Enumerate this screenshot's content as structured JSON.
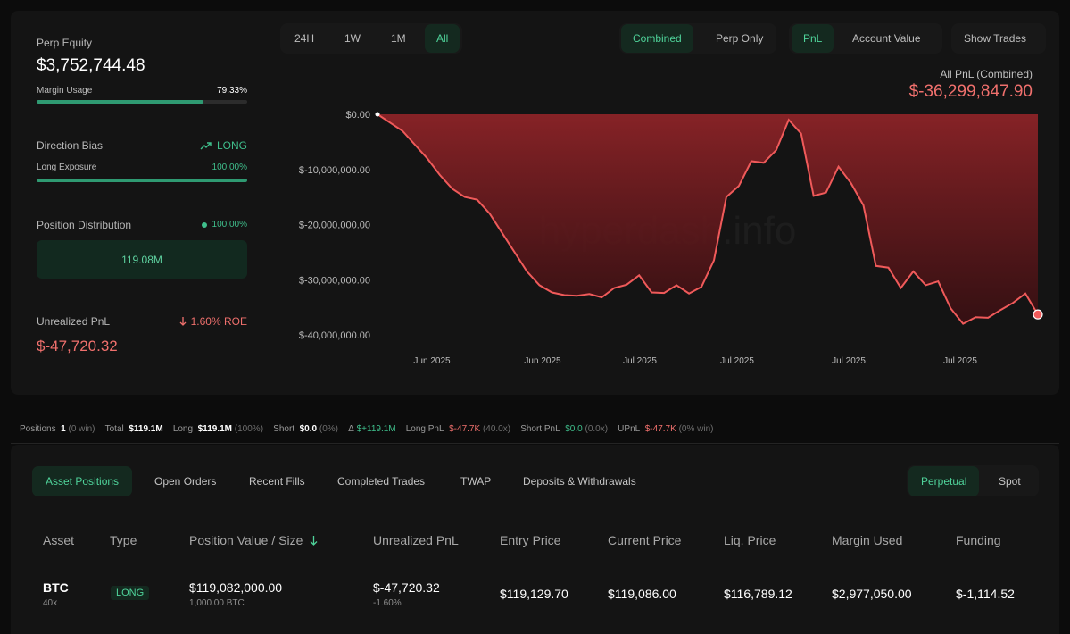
{
  "summary": {
    "perp_equity_label": "Perp Equity",
    "perp_equity_value": "$3,752,744.48",
    "margin_usage_label": "Margin Usage",
    "margin_usage_value": "79.33%",
    "margin_usage_fraction": 0.7933,
    "direction_bias_label": "Direction Bias",
    "direction_bias_value": "LONG",
    "long_exposure_label": "Long Exposure",
    "long_exposure_value": "100.00%",
    "long_exposure_fraction": 1.0,
    "position_distribution_label": "Position Distribution",
    "position_distribution_value": "100.00%",
    "position_distribution_total": "119.08M",
    "unrealized_pnl_label": "Unrealized PnL",
    "unrealized_pnl_roe": "1.60% ROE",
    "unrealized_pnl_value": "$-47,720.32"
  },
  "timeframes": [
    "24H",
    "1W",
    "1M",
    "All"
  ],
  "active_timeframe": "All",
  "view_modes": [
    "Combined",
    "Perp Only"
  ],
  "active_view_mode": "Combined",
  "metrics": [
    "PnL",
    "Account Value"
  ],
  "active_metric": "PnL",
  "show_trades_label": "Show Trades",
  "pnl_header": {
    "label": "All PnL (Combined)",
    "value": "$-36,299,847.90"
  },
  "watermark": "hyperdash.info",
  "colors": {
    "accent_green": "#3fbf8c",
    "loss_red": "#f0706d",
    "line_red": "#f05a5a",
    "area_fill": "#7d1f23"
  },
  "chart_data": {
    "type": "area",
    "series": [
      {
        "values": [
          0,
          -1500000,
          -3000000,
          -5500000,
          -8000000,
          -11000000,
          -13500000,
          -15000000,
          -15500000,
          -18000000,
          -21500000,
          -25000000,
          -28500000,
          -31000000,
          -32300000,
          -32800000,
          -32900000,
          -32600000,
          -33200000,
          -31500000,
          -30900000,
          -29200000,
          -32300000,
          -32400000,
          -31000000,
          -32500000,
          -31300000,
          -26500000,
          -15000000,
          -13000000,
          -8500000,
          -8800000,
          -6500000,
          -1000000,
          -3500000,
          -14800000,
          -14200000,
          -9500000,
          -12500000,
          -16500000,
          -27500000,
          -27800000,
          -31500000,
          -28500000,
          -31000000,
          -30300000,
          -35200000,
          -38000000,
          -36800000,
          -36900000,
          -35500000,
          -34200000,
          -32500000,
          -36300000
        ]
      }
    ],
    "y_tick_labels": [
      "$0.00",
      "$-10,000,000.00",
      "$-20,000,000.00",
      "$-30,000,000.00",
      "$-40,000,000.00"
    ],
    "y_ticks": [
      0,
      -10000000,
      -20000000,
      -30000000,
      -40000000
    ],
    "ylim": [
      -40000000,
      0
    ],
    "x_tick_labels": [
      "Jun 2025",
      "Jun 2025",
      "Jul 2025",
      "Jul 2025",
      "Jul 2025",
      "Jul 2025"
    ],
    "grid": false,
    "legend": "none"
  },
  "stats_bar": {
    "positions_label": "Positions",
    "positions_value": "1",
    "positions_win": "(0 win)",
    "total_label": "Total",
    "total_value": "$119.1M",
    "long_label": "Long",
    "long_value": "$119.1M",
    "long_pct": "(100%)",
    "short_label": "Short",
    "short_value": "$0.0",
    "short_pct": "(0%)",
    "delta_label": "Δ",
    "delta_value": "$+119.1M",
    "long_pnl_label": "Long PnL",
    "long_pnl_value": "$-47.7K",
    "long_pnl_x": "(40.0x)",
    "short_pnl_label": "Short PnL",
    "short_pnl_value": "$0.0",
    "short_pnl_x": "(0.0x)",
    "upnl_label": "UPnL",
    "upnl_value": "$-47.7K",
    "upnl_win": "(0% win)"
  },
  "tabs": [
    "Asset Positions",
    "Open Orders",
    "Recent Fills",
    "Completed Trades",
    "TWAP",
    "Deposits & Withdrawals"
  ],
  "active_tab": "Asset Positions",
  "market_types": [
    "Perpetual",
    "Spot"
  ],
  "active_market_type": "Perpetual",
  "table": {
    "headers": [
      "Asset",
      "Type",
      "Position Value / Size",
      "Unrealized PnL",
      "Entry Price",
      "Current Price",
      "Liq. Price",
      "Margin Used",
      "Funding"
    ],
    "rows": [
      {
        "asset": "BTC",
        "leverage": "40x",
        "type": "LONG",
        "position_value": "$119,082,000.00",
        "size": "1,000.00 BTC",
        "unrealized_pnl": "$-47,720.32",
        "unrealized_pnl_pct": "-1.60%",
        "entry_price": "$119,129.70",
        "current_price": "$119,086.00",
        "liq_price": "$116,789.12",
        "margin_used": "$2,977,050.00",
        "funding": "$-1,114.52"
      }
    ]
  }
}
